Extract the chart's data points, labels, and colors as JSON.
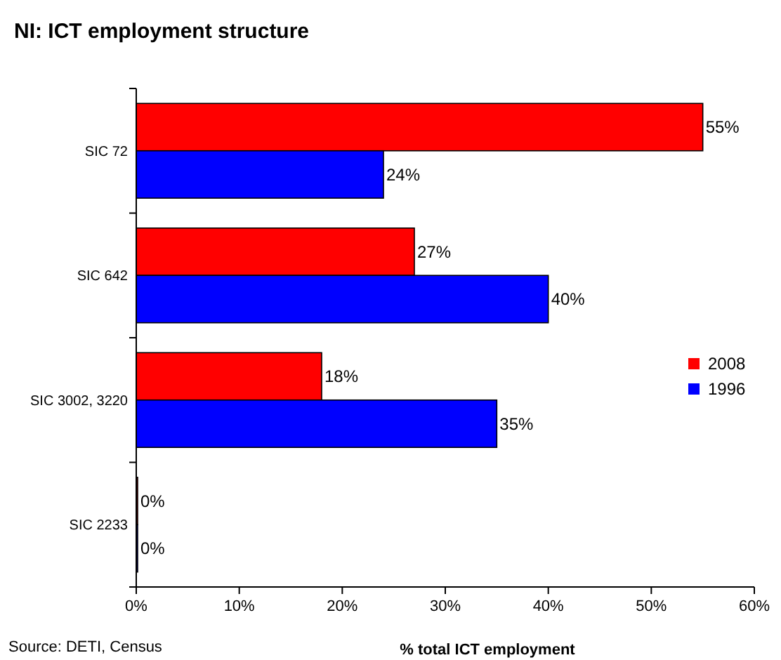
{
  "chart_data": {
    "type": "bar",
    "orientation": "horizontal",
    "title": "NI: ICT employment structure",
    "xlabel": "% total ICT employment",
    "categories": [
      "SIC 72",
      "SIC 642",
      "SIC 3002, 3220",
      "SIC 2233"
    ],
    "series": [
      {
        "name": "2008",
        "color": "#ff0000",
        "values": [
          55,
          27,
          18,
          0
        ],
        "value_labels": [
          "55%",
          "27%",
          "18%",
          "0%"
        ]
      },
      {
        "name": "1996",
        "color": "#0000ff",
        "values": [
          24,
          40,
          35,
          0
        ],
        "value_labels": [
          "24%",
          "40%",
          "35%",
          "0%"
        ]
      }
    ],
    "xlim": [
      0,
      60
    ],
    "xticks": [
      {
        "value": 0,
        "label": "0%"
      },
      {
        "value": 10,
        "label": "10%"
      },
      {
        "value": 20,
        "label": "20%"
      },
      {
        "value": 30,
        "label": "30%"
      },
      {
        "value": 40,
        "label": "40%"
      },
      {
        "value": 50,
        "label": "50%"
      },
      {
        "value": 60,
        "label": "60%"
      }
    ],
    "legend": "right",
    "grid": false,
    "annotations": [
      "Source: DETI, Census"
    ]
  }
}
